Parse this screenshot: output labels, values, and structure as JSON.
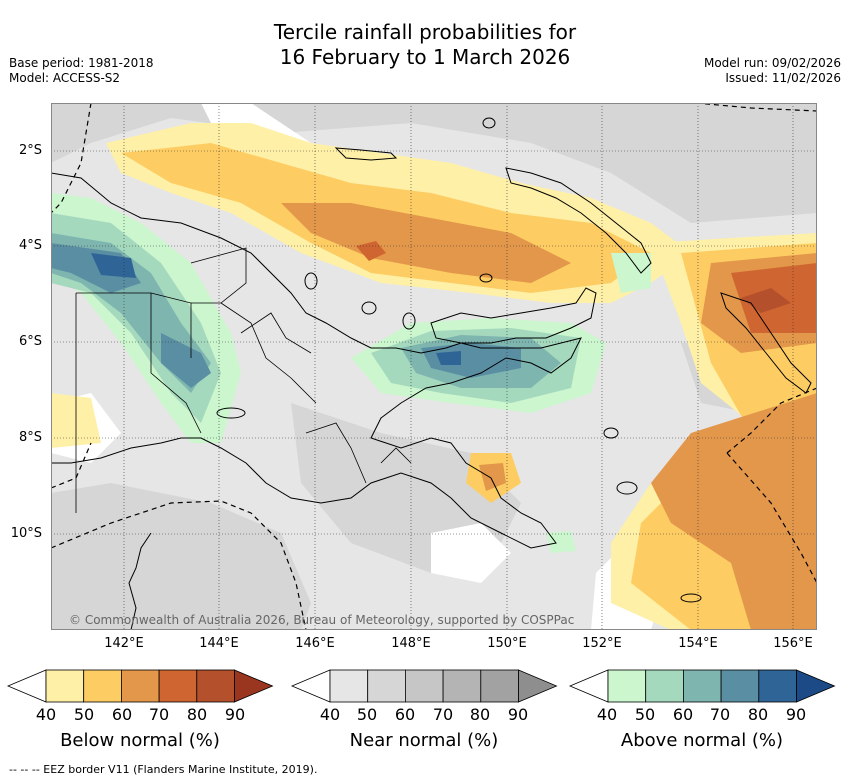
{
  "title_line1": "Tercile rainfall probabilities for",
  "title_line2": "16 February to 1 March 2026",
  "base_period": "Base period: 1981-2018",
  "model": "Model: ACCESS-S2",
  "model_run": "Model run: 09/02/2026",
  "issued": "Issued: 11/02/2026",
  "lat_labels": [
    "2°S",
    "4°S",
    "6°S",
    "8°S",
    "10°S"
  ],
  "lon_labels": [
    "142°E",
    "144°E",
    "146°E",
    "148°E",
    "150°E",
    "152°E",
    "154°E",
    "156°E"
  ],
  "credit": "© Commonwealth of Australia 2026, Bureau of Meteorology, supported by COSPPac",
  "legends": [
    {
      "name": "Below normal (%)",
      "ticks": [
        "40",
        "50",
        "60",
        "70",
        "80",
        "90"
      ],
      "colors": [
        "#fef0a7",
        "#fdcd63",
        "#e3974a",
        "#cf6631",
        "#b4502c",
        "#9a3620"
      ]
    },
    {
      "name": "Near normal (%)",
      "ticks": [
        "40",
        "50",
        "60",
        "70",
        "80",
        "90"
      ],
      "colors": [
        "#e6e6e6",
        "#d6d6d6",
        "#c6c6c6",
        "#b4b4b4",
        "#a2a2a2",
        "#8e8e8e"
      ]
    },
    {
      "name": "Above normal (%)",
      "ticks": [
        "40",
        "50",
        "60",
        "70",
        "80",
        "90"
      ],
      "colors": [
        "#cbf6ce",
        "#a5d9bd",
        "#7eb5af",
        "#5a8fa3",
        "#2f6496",
        "#1b4a86"
      ]
    }
  ],
  "eez_note": "--  --  -- EEZ border V11 (Flanders Marine Institute, 2019)."
}
